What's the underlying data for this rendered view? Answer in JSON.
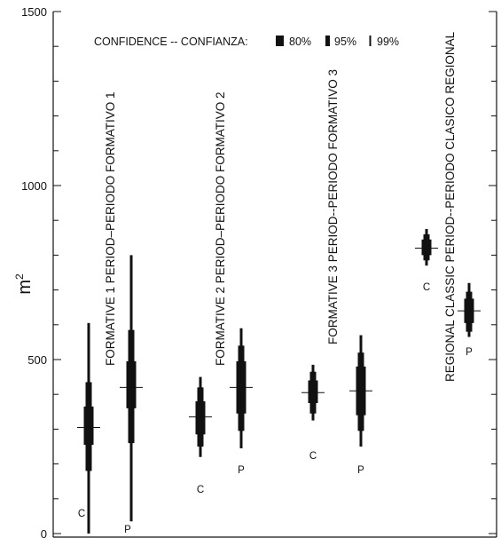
{
  "chart_data": {
    "type": "interval",
    "ylabel": "m",
    "ylabel_superscript": "2",
    "ylim": [
      0,
      1500
    ],
    "yticks_major": [
      0,
      500,
      1000,
      1500
    ],
    "yticks_major_labels": [
      "0",
      "500",
      "1000",
      "1500"
    ],
    "yticks_minor_step": 100,
    "legend": {
      "title": "CONFIDENCE -- CONFIANZA:",
      "entries": [
        "80%",
        "95%",
        "99%"
      ],
      "placement": "top"
    },
    "periods": [
      {
        "label": "FORMATIVE 1 PERIOD–PERIODO FORMATIVO 1",
        "groups": [
          {
            "label": "C",
            "mean": 305,
            "ci80": [
              255,
              365
            ],
            "ci95": [
              180,
              435
            ],
            "ci99": [
              0,
              605
            ]
          },
          {
            "label": "P",
            "mean": 420,
            "ci80": [
              360,
              495
            ],
            "ci95": [
              260,
              585
            ],
            "ci99": [
              35,
              800
            ]
          }
        ]
      },
      {
        "label": "FORMATIVE 2 PERIOD–PERIODO FORMATIVO 2",
        "groups": [
          {
            "label": "C",
            "mean": 335,
            "ci80": [
              285,
              380
            ],
            "ci95": [
              250,
              420
            ],
            "ci99": [
              220,
              450
            ]
          },
          {
            "label": "P",
            "mean": 420,
            "ci80": [
              345,
              495
            ],
            "ci95": [
              295,
              540
            ],
            "ci99": [
              245,
              590
            ]
          }
        ]
      },
      {
        "label": "FORMATIVE 3 PERIOD--PERIODO FORMATIVO 3",
        "groups": [
          {
            "label": "C",
            "mean": 405,
            "ci80": [
              375,
              440
            ],
            "ci95": [
              345,
              465
            ],
            "ci99": [
              325,
              485
            ]
          },
          {
            "label": "P",
            "mean": 410,
            "ci80": [
              340,
              480
            ],
            "ci95": [
              295,
              520
            ],
            "ci99": [
              250,
              570
            ]
          }
        ]
      },
      {
        "label": "REGIONAL CLASSIC PERIOD--PERIODO CLASICO REGIONAL",
        "groups": [
          {
            "label": "C",
            "mean": 820,
            "ci80": [
              800,
              845
            ],
            "ci95": [
              785,
              860
            ],
            "ci99": [
              770,
              875
            ]
          },
          {
            "label": "P",
            "mean": 640,
            "ci80": [
              605,
              675
            ],
            "ci95": [
              580,
              695
            ],
            "ci99": [
              565,
              720
            ]
          }
        ]
      }
    ]
  }
}
